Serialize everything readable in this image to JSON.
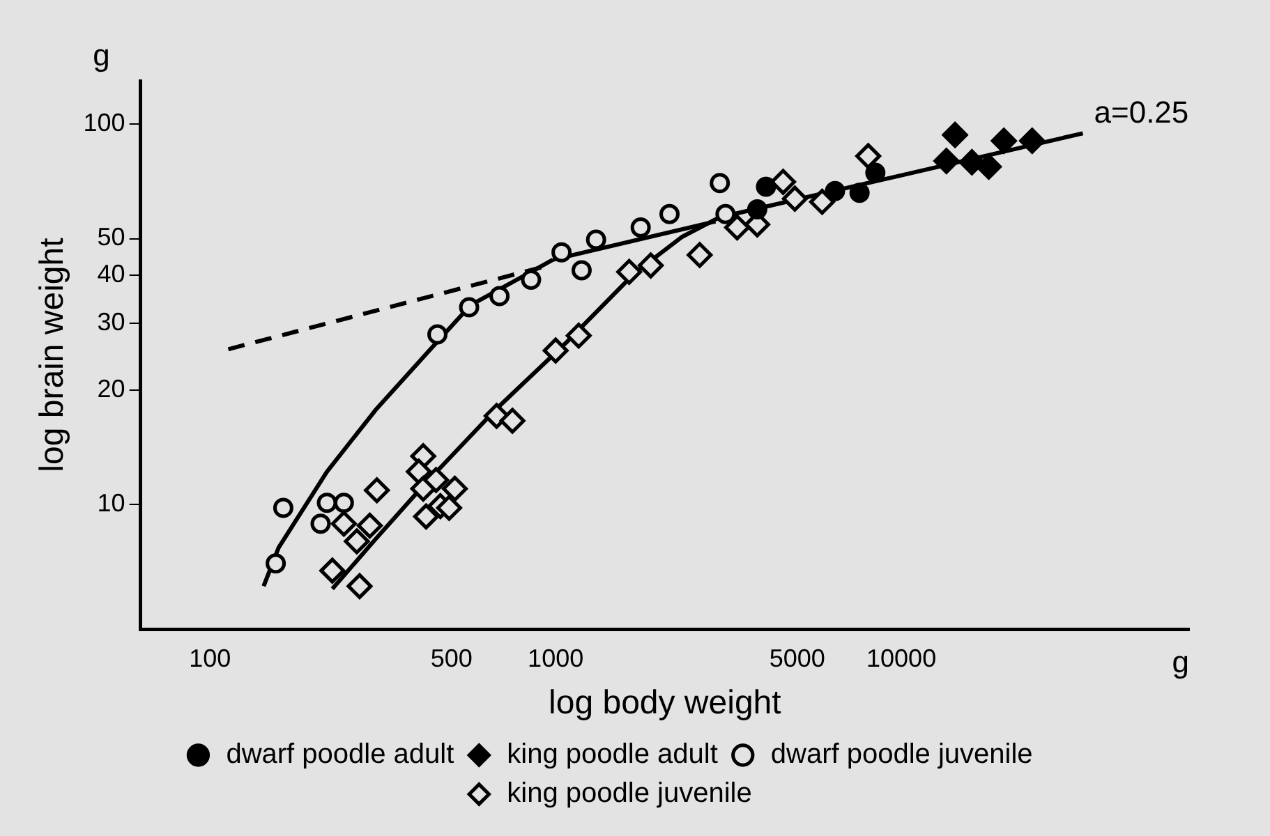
{
  "chart_data": {
    "type": "scatter",
    "xlabel": "log body weight",
    "ylabel": "log brain weight",
    "log": "xy",
    "xlim": [
      63,
      68000
    ],
    "ylim": [
      4.7,
      130
    ],
    "xticks": [
      100,
      500,
      1000,
      5000,
      10000
    ],
    "yticks": [
      10,
      20,
      30,
      40,
      50,
      100
    ],
    "grid": false,
    "legend": "bottom",
    "annotations": [
      "g",
      "g",
      {
        "text": "a=0.25",
        "x": 33500,
        "y": 95
      }
    ],
    "series": [
      {
        "name": "dwarf poodle adult",
        "marker": "circle",
        "color": "#000000",
        "x": [
          4060,
          3830,
          6430,
          7570,
          8410
        ],
        "values": [
          68.5,
          59.7,
          66.7,
          66,
          74.5
        ]
      },
      {
        "name": "king poodle adult",
        "marker": "diamond",
        "color": "#000000",
        "x": [
          14300,
          13500,
          16000,
          17900,
          19800,
          23900
        ],
        "values": [
          93.7,
          80,
          79.4,
          77.3,
          90.4,
          90.4
        ]
      },
      {
        "name": "dwarf poodle juvenile",
        "marker": "circle",
        "color": "#e3e3e3",
        "x": [
          155,
          163,
          209,
          218,
          244,
          455,
          562,
          688,
          849,
          1040,
          1189,
          1309,
          1762,
          2135,
          2985,
          3100
        ],
        "values": [
          7.0,
          9.8,
          8.9,
          10.1,
          10.1,
          28,
          33,
          35.3,
          39,
          46,
          41.3,
          49.7,
          53.5,
          58,
          70,
          58
        ]
      },
      {
        "name": "king poodle juvenile",
        "marker": "diamond",
        "color": "#e3e3e3",
        "x": [
          226,
          271,
          244,
          266,
          290,
          304,
          414,
          402,
          414,
          451,
          422,
          464,
          492,
          511,
          675,
          750,
          1000,
          1166,
          1632,
          1884,
          2610,
          3350,
          3830,
          4550,
          4920,
          5900,
          8020
        ],
        "values": [
          6.7,
          6.1,
          8.9,
          8.0,
          8.8,
          10.9,
          13.4,
          12.2,
          11,
          11.6,
          9.3,
          9.9,
          9.8,
          11,
          17.1,
          16.6,
          25.4,
          27.8,
          40.9,
          42.5,
          45.3,
          53.5,
          54.5,
          70.5,
          63.7,
          62.5,
          82.4
        ]
      },
      {
        "type": "line",
        "line_style": "dashed",
        "marker": "none",
        "color": "#000000",
        "x": [
          113,
          917
        ],
        "values": [
          25.6,
          42.1
        ]
      },
      {
        "type": "line",
        "line_style": "solid",
        "marker": "none",
        "color": "#000000",
        "x": [
          981,
          2900
        ],
        "values": [
          44,
          55.5
        ]
      },
      {
        "type": "line",
        "line_style": "solid",
        "marker": "none",
        "color": "#000000",
        "x": [
          3010,
          33500
        ],
        "values": [
          57,
          94.6
        ]
      },
      {
        "type": "line",
        "line_style": "solid",
        "marker": "none",
        "color": "#000000",
        "x": [
          143,
          158,
          218,
          301,
          414,
          567,
          866,
          981
        ],
        "values": [
          6.1,
          7.7,
          12.2,
          17.7,
          24.4,
          33.4,
          41.3,
          44
        ]
      },
      {
        "type": "line",
        "line_style": "solid",
        "marker": "none",
        "color": "#000000",
        "x": [
          226,
          301,
          414,
          668,
          1080,
          1694,
          2326,
          3100
        ],
        "values": [
          6.0,
          8.1,
          11.2,
          17.7,
          26.8,
          40.6,
          50.6,
          58
        ]
      }
    ]
  }
}
